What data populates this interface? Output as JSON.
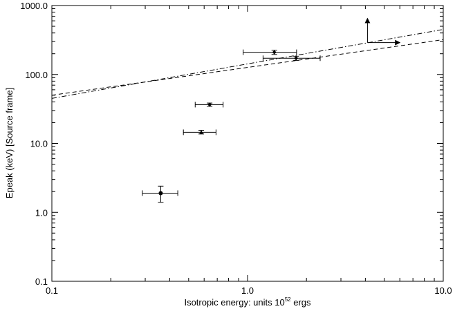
{
  "chart_data": {
    "type": "scatter",
    "xscale": "log",
    "yscale": "log",
    "xlim": [
      0.1,
      10.0
    ],
    "ylim": [
      0.1,
      1000.0
    ],
    "grid": false,
    "xlabel_main": "Isotropic energy: units 10",
    "xlabel_exp": "52",
    "xlabel_suffix": " ergs",
    "ylabel": "Epeak (keV) [Source frame]",
    "x_ticks": [
      {
        "value": 0.1,
        "label": "0.1"
      },
      {
        "value": 1.0,
        "label": "1.0"
      },
      {
        "value": 10.0,
        "label": "10.0"
      }
    ],
    "y_ticks": [
      {
        "value": 0.1,
        "label": "0.1"
      },
      {
        "value": 1.0,
        "label": "1.0"
      },
      {
        "value": 10.0,
        "label": "10.0"
      },
      {
        "value": 100.0,
        "label": "100.0"
      },
      {
        "value": 1000.0,
        "label": "1000.0"
      }
    ],
    "points": [
      {
        "x": 0.36,
        "y": 1.9,
        "xerr": [
          0.29,
          0.44
        ],
        "yerr": [
          1.4,
          2.4
        ],
        "marker": "circle"
      },
      {
        "x": 0.58,
        "y": 14.5,
        "xerr": [
          0.47,
          0.69
        ],
        "yerr": [
          13.7,
          15.5
        ],
        "marker": "triangle"
      },
      {
        "x": 0.64,
        "y": 36.5,
        "xerr": [
          0.54,
          0.75
        ],
        "yerr": [
          34.5,
          38.5
        ],
        "marker": "diamond"
      },
      {
        "x": 1.37,
        "y": 210.0,
        "xerr": [
          0.95,
          1.78
        ],
        "yerr": [
          195.0,
          225.0
        ],
        "marker": "diamond"
      },
      {
        "x": 1.77,
        "y": 172.0,
        "xerr": [
          1.2,
          2.35
        ],
        "yerr": [
          160.0,
          184.0
        ],
        "marker": "diamond"
      }
    ],
    "limit_point": {
      "x": 4.1,
      "y": 290.0,
      "arrow_up_to_y": 650.0,
      "arrow_right_to_x": 6.0
    },
    "lines": [
      {
        "style": "dashdot",
        "x": [
          0.1,
          10.0
        ],
        "y": [
          45.0,
          450.0
        ]
      },
      {
        "style": "dashed",
        "x": [
          0.1,
          10.0
        ],
        "y": [
          50.0,
          320.0
        ]
      }
    ]
  }
}
